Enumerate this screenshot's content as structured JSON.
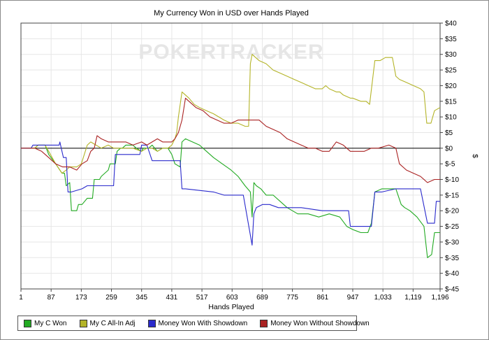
{
  "chart_data": {
    "type": "line",
    "title": "My Currency Won in USD over Hands Played",
    "xlabel": "Hands Played",
    "ylabel": "$",
    "watermark": "POKERTRACKER",
    "xlim": [
      1,
      1196
    ],
    "ylim": [
      -45,
      40
    ],
    "x_ticks": [
      1,
      87,
      173,
      259,
      345,
      431,
      517,
      603,
      689,
      775,
      861,
      947,
      1033,
      1119,
      1196
    ],
    "x_tick_labels": [
      "1",
      "87",
      "173",
      "259",
      "345",
      "431",
      "517",
      "603",
      "689",
      "775",
      "861",
      "947",
      "1,033",
      "1,119",
      "1,196"
    ],
    "y_ticks": [
      40,
      35,
      30,
      25,
      20,
      15,
      10,
      5,
      0,
      -5,
      -10,
      -15,
      -20,
      -25,
      -30,
      -35,
      -40,
      -45
    ],
    "y_tick_labels": [
      "$40",
      "$35",
      "$30",
      "$25",
      "$20",
      "$15",
      "$10",
      "$5",
      "$0",
      "$-5",
      "$-10",
      "$-15",
      "$-20",
      "$-25",
      "$-30",
      "$-35",
      "$-40",
      "$-45"
    ],
    "zero_line": true,
    "grid": "horizontal-and-vertical",
    "legend_position": "bottom",
    "series": [
      {
        "name": "My C Won",
        "color": "#22aa22",
        "points": [
          [
            1,
            0
          ],
          [
            40,
            0
          ],
          [
            50,
            1
          ],
          [
            70,
            1
          ],
          [
            80,
            -2
          ],
          [
            100,
            -5
          ],
          [
            118,
            -8
          ],
          [
            125,
            -8
          ],
          [
            130,
            -12
          ],
          [
            140,
            -11
          ],
          [
            145,
            -20
          ],
          [
            160,
            -20
          ],
          [
            165,
            -18
          ],
          [
            175,
            -18
          ],
          [
            190,
            -16
          ],
          [
            205,
            -16
          ],
          [
            210,
            -10
          ],
          [
            225,
            -10
          ],
          [
            230,
            -9
          ],
          [
            250,
            -7
          ],
          [
            255,
            -5
          ],
          [
            270,
            -5
          ],
          [
            275,
            -1
          ],
          [
            285,
            0
          ],
          [
            290,
            0
          ],
          [
            300,
            1
          ],
          [
            320,
            1
          ],
          [
            330,
            0
          ],
          [
            345,
            -1
          ],
          [
            350,
            0
          ],
          [
            365,
            0
          ],
          [
            375,
            1
          ],
          [
            390,
            -1
          ],
          [
            405,
            0
          ],
          [
            420,
            0
          ],
          [
            431,
            -2
          ],
          [
            440,
            -5
          ],
          [
            455,
            -6
          ],
          [
            460,
            2
          ],
          [
            470,
            3
          ],
          [
            490,
            2
          ],
          [
            510,
            1
          ],
          [
            530,
            -1
          ],
          [
            550,
            -3
          ],
          [
            575,
            -5
          ],
          [
            600,
            -7
          ],
          [
            620,
            -9
          ],
          [
            640,
            -12
          ],
          [
            655,
            -14
          ],
          [
            660,
            -22
          ],
          [
            665,
            -11
          ],
          [
            672,
            -12
          ],
          [
            685,
            -13
          ],
          [
            700,
            -15
          ],
          [
            720,
            -15
          ],
          [
            740,
            -17
          ],
          [
            760,
            -19
          ],
          [
            790,
            -21
          ],
          [
            820,
            -21
          ],
          [
            850,
            -22
          ],
          [
            880,
            -21
          ],
          [
            910,
            -22
          ],
          [
            930,
            -25
          ],
          [
            947,
            -26
          ],
          [
            970,
            -27
          ],
          [
            990,
            -27
          ],
          [
            1000,
            -24
          ],
          [
            1010,
            -14
          ],
          [
            1030,
            -13
          ],
          [
            1070,
            -13
          ],
          [
            1085,
            -18
          ],
          [
            1095,
            -19
          ],
          [
            1110,
            -20
          ],
          [
            1130,
            -22
          ],
          [
            1150,
            -25
          ],
          [
            1160,
            -35
          ],
          [
            1172,
            -34
          ],
          [
            1180,
            -27
          ],
          [
            1196,
            -27
          ]
        ]
      },
      {
        "name": "My C All-In Adj",
        "color": "#b4b428",
        "points": [
          [
            1,
            0
          ],
          [
            40,
            0
          ],
          [
            50,
            1
          ],
          [
            70,
            1
          ],
          [
            80,
            -1
          ],
          [
            100,
            -5
          ],
          [
            118,
            -8
          ],
          [
            130,
            -7
          ],
          [
            140,
            -6
          ],
          [
            160,
            -6
          ],
          [
            173,
            -5
          ],
          [
            190,
            1
          ],
          [
            200,
            2
          ],
          [
            215,
            1
          ],
          [
            230,
            0
          ],
          [
            250,
            1
          ],
          [
            265,
            0
          ],
          [
            290,
            0
          ],
          [
            300,
            0
          ],
          [
            320,
            0
          ],
          [
            345,
            -1
          ],
          [
            360,
            0
          ],
          [
            375,
            0
          ],
          [
            390,
            -1
          ],
          [
            405,
            0
          ],
          [
            420,
            0
          ],
          [
            431,
            1
          ],
          [
            440,
            3
          ],
          [
            445,
            5
          ],
          [
            450,
            10
          ],
          [
            460,
            18
          ],
          [
            470,
            17
          ],
          [
            480,
            16
          ],
          [
            495,
            14
          ],
          [
            510,
            13
          ],
          [
            530,
            12
          ],
          [
            550,
            11
          ],
          [
            565,
            10
          ],
          [
            580,
            9
          ],
          [
            600,
            8
          ],
          [
            620,
            8
          ],
          [
            640,
            7
          ],
          [
            650,
            7
          ],
          [
            655,
            27
          ],
          [
            660,
            30
          ],
          [
            670,
            29
          ],
          [
            680,
            28
          ],
          [
            700,
            27
          ],
          [
            720,
            25
          ],
          [
            740,
            24
          ],
          [
            760,
            23
          ],
          [
            780,
            22
          ],
          [
            800,
            21
          ],
          [
            820,
            20
          ],
          [
            840,
            19
          ],
          [
            860,
            19
          ],
          [
            870,
            20
          ],
          [
            880,
            19
          ],
          [
            900,
            18
          ],
          [
            910,
            18
          ],
          [
            920,
            17
          ],
          [
            940,
            16
          ],
          [
            947,
            16
          ],
          [
            970,
            15
          ],
          [
            985,
            15
          ],
          [
            995,
            14
          ],
          [
            1010,
            28
          ],
          [
            1025,
            28
          ],
          [
            1040,
            29
          ],
          [
            1060,
            29
          ],
          [
            1070,
            23
          ],
          [
            1080,
            22
          ],
          [
            1100,
            21
          ],
          [
            1120,
            20
          ],
          [
            1140,
            19
          ],
          [
            1150,
            18
          ],
          [
            1158,
            8
          ],
          [
            1170,
            8
          ],
          [
            1180,
            12
          ],
          [
            1196,
            13
          ]
        ]
      },
      {
        "name": "Money Won With Showdown",
        "color": "#2a2acc",
        "points": [
          [
            1,
            0
          ],
          [
            30,
            0
          ],
          [
            35,
            1
          ],
          [
            110,
            1
          ],
          [
            112,
            2
          ],
          [
            114,
            1
          ],
          [
            118,
            -1
          ],
          [
            122,
            -3
          ],
          [
            130,
            -3
          ],
          [
            135,
            -14
          ],
          [
            145,
            -14
          ],
          [
            175,
            -13
          ],
          [
            190,
            -12
          ],
          [
            265,
            -12
          ],
          [
            270,
            -2
          ],
          [
            280,
            -2
          ],
          [
            340,
            -2
          ],
          [
            345,
            1
          ],
          [
            360,
            1
          ],
          [
            375,
            -4
          ],
          [
            431,
            -4
          ],
          [
            455,
            -4
          ],
          [
            460,
            -13
          ],
          [
            470,
            -13
          ],
          [
            550,
            -14
          ],
          [
            580,
            -15
          ],
          [
            635,
            -15
          ],
          [
            660,
            -31
          ],
          [
            665,
            -21
          ],
          [
            672,
            -19
          ],
          [
            690,
            -18
          ],
          [
            710,
            -18
          ],
          [
            735,
            -19
          ],
          [
            800,
            -19
          ],
          [
            860,
            -20
          ],
          [
            880,
            -20
          ],
          [
            935,
            -20
          ],
          [
            940,
            -25
          ],
          [
            1000,
            -25
          ],
          [
            1010,
            -14
          ],
          [
            1030,
            -14
          ],
          [
            1070,
            -13
          ],
          [
            1140,
            -13
          ],
          [
            1160,
            -24
          ],
          [
            1180,
            -24
          ],
          [
            1185,
            -17
          ],
          [
            1196,
            -17
          ]
        ]
      },
      {
        "name": "Money Won Without Showdown",
        "color": "#aa2222",
        "points": [
          [
            1,
            0
          ],
          [
            40,
            0
          ],
          [
            60,
            -1
          ],
          [
            80,
            -3
          ],
          [
            100,
            -5
          ],
          [
            120,
            -6
          ],
          [
            140,
            -6
          ],
          [
            160,
            -7
          ],
          [
            175,
            -5
          ],
          [
            190,
            -4
          ],
          [
            200,
            -1
          ],
          [
            210,
            0
          ],
          [
            218,
            4
          ],
          [
            230,
            3
          ],
          [
            250,
            2
          ],
          [
            270,
            2
          ],
          [
            300,
            2
          ],
          [
            320,
            1
          ],
          [
            345,
            2
          ],
          [
            360,
            1
          ],
          [
            375,
            2
          ],
          [
            390,
            3
          ],
          [
            405,
            2
          ],
          [
            431,
            2
          ],
          [
            440,
            3
          ],
          [
            450,
            5
          ],
          [
            460,
            9
          ],
          [
            470,
            16
          ],
          [
            480,
            15
          ],
          [
            500,
            13
          ],
          [
            520,
            12
          ],
          [
            540,
            10
          ],
          [
            560,
            9
          ],
          [
            580,
            8
          ],
          [
            600,
            8
          ],
          [
            620,
            9
          ],
          [
            640,
            9
          ],
          [
            660,
            9
          ],
          [
            680,
            9
          ],
          [
            700,
            7
          ],
          [
            720,
            6
          ],
          [
            740,
            5
          ],
          [
            760,
            3
          ],
          [
            780,
            2
          ],
          [
            800,
            1
          ],
          [
            820,
            0
          ],
          [
            840,
            0
          ],
          [
            860,
            -1
          ],
          [
            880,
            -1
          ],
          [
            900,
            2
          ],
          [
            920,
            1
          ],
          [
            940,
            -1
          ],
          [
            960,
            -1
          ],
          [
            980,
            -1
          ],
          [
            1000,
            0
          ],
          [
            1020,
            0
          ],
          [
            1050,
            1
          ],
          [
            1070,
            0
          ],
          [
            1080,
            -5
          ],
          [
            1100,
            -7
          ],
          [
            1120,
            -8
          ],
          [
            1140,
            -9
          ],
          [
            1160,
            -11
          ],
          [
            1180,
            -10
          ],
          [
            1196,
            -10
          ]
        ]
      }
    ]
  }
}
